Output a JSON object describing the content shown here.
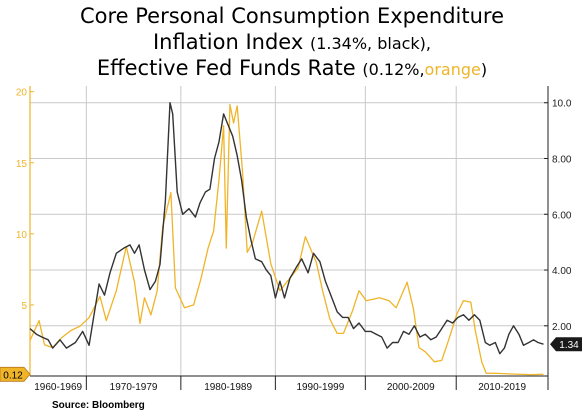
{
  "title": {
    "line1": "Core Personal Consumption Expenditure",
    "line2_main": "Inflation Index",
    "line2_paren": "(1.34%, black),",
    "line3_main": "Effective Fed Funds Rate",
    "line3_paren_open": "(0.12%,",
    "line3_orange": "orange",
    "line3_paren_close": ")"
  },
  "source": "Source:  Bloomberg",
  "colors": {
    "pce": "#333333",
    "fed": "#f0b429",
    "grid": "#c9c9c9"
  },
  "chart_data": {
    "type": "line",
    "x_labels": [
      "1960-1969",
      "1970-1979",
      "1980-1989",
      "1990-1999",
      "2000-2009",
      "2010-2019"
    ],
    "xlim": [
      1959,
      2016
    ],
    "y_left": {
      "ticks": [
        "20",
        "15",
        "10",
        "5"
      ],
      "values": [
        20,
        15,
        10,
        5
      ],
      "lim": [
        0,
        20.4
      ]
    },
    "y_right": {
      "ticks": [
        "10.0",
        "8.00",
        "6.00",
        "4.00",
        "2.00"
      ],
      "values": [
        10,
        8,
        6,
        4,
        2
      ],
      "lim": [
        0.2,
        10.6
      ]
    },
    "end_labels": {
      "fed": "0.12",
      "pce": "1.34"
    },
    "series": [
      {
        "name": "Effective Fed Funds Rate",
        "axis": "left",
        "color": "#f0b429",
        "points": [
          [
            1959.0,
            2.5
          ],
          [
            1960.0,
            3.9
          ],
          [
            1960.6,
            2.2
          ],
          [
            1961.5,
            2.0
          ],
          [
            1962.5,
            2.7
          ],
          [
            1963.5,
            3.2
          ],
          [
            1964.5,
            3.5
          ],
          [
            1965.5,
            4.1
          ],
          [
            1966.7,
            5.6
          ],
          [
            1967.4,
            3.9
          ],
          [
            1968.5,
            6.0
          ],
          [
            1969.6,
            9.1
          ],
          [
            1970.5,
            6.6
          ],
          [
            1971.1,
            3.7
          ],
          [
            1971.6,
            5.5
          ],
          [
            1972.3,
            4.3
          ],
          [
            1973.0,
            6.0
          ],
          [
            1973.6,
            10.5
          ],
          [
            1974.5,
            12.9
          ],
          [
            1975.0,
            6.2
          ],
          [
            1976.0,
            4.8
          ],
          [
            1977.0,
            5.0
          ],
          [
            1977.8,
            6.8
          ],
          [
            1978.6,
            9.0
          ],
          [
            1979.2,
            10.2
          ],
          [
            1979.8,
            13.8
          ],
          [
            1980.3,
            17.6
          ],
          [
            1980.6,
            9.0
          ],
          [
            1981.0,
            19.1
          ],
          [
            1981.4,
            17.8
          ],
          [
            1981.8,
            19.0
          ],
          [
            1982.4,
            14.2
          ],
          [
            1982.9,
            8.7
          ],
          [
            1983.5,
            9.4
          ],
          [
            1984.5,
            11.6
          ],
          [
            1985.5,
            7.9
          ],
          [
            1986.5,
            6.0
          ],
          [
            1987.5,
            6.8
          ],
          [
            1988.5,
            7.6
          ],
          [
            1989.3,
            9.8
          ],
          [
            1990.5,
            8.0
          ],
          [
            1991.2,
            6.0
          ],
          [
            1992.0,
            4.0
          ],
          [
            1992.8,
            3.0
          ],
          [
            1993.5,
            3.0
          ],
          [
            1994.5,
            4.6
          ],
          [
            1995.2,
            6.0
          ],
          [
            1996.0,
            5.3
          ],
          [
            1997.5,
            5.5
          ],
          [
            1998.5,
            5.3
          ],
          [
            1999.3,
            4.8
          ],
          [
            2000.5,
            6.6
          ],
          [
            2001.2,
            4.7
          ],
          [
            2001.8,
            2.0
          ],
          [
            2002.5,
            1.7
          ],
          [
            2003.5,
            1.0
          ],
          [
            2004.3,
            1.1
          ],
          [
            2005.0,
            2.4
          ],
          [
            2006.0,
            4.4
          ],
          [
            2006.7,
            5.3
          ],
          [
            2007.5,
            5.2
          ],
          [
            2008.0,
            3.2
          ],
          [
            2008.7,
            1.0
          ],
          [
            2009.2,
            0.2
          ],
          [
            2010.5,
            0.18
          ],
          [
            2012.0,
            0.14
          ],
          [
            2014.0,
            0.1
          ],
          [
            2015.5,
            0.12
          ]
        ]
      },
      {
        "name": "Core PCE Inflation Index",
        "axis": "right",
        "color": "#333333",
        "points": [
          [
            1959.0,
            1.9
          ],
          [
            1959.7,
            1.7
          ],
          [
            1960.3,
            1.6
          ],
          [
            1961.0,
            1.5
          ],
          [
            1961.5,
            1.2
          ],
          [
            1962.3,
            1.5
          ],
          [
            1963.0,
            1.2
          ],
          [
            1964.0,
            1.4
          ],
          [
            1964.8,
            1.8
          ],
          [
            1965.5,
            1.3
          ],
          [
            1966.0,
            2.3
          ],
          [
            1966.6,
            3.5
          ],
          [
            1967.2,
            3.1
          ],
          [
            1967.8,
            3.9
          ],
          [
            1968.5,
            4.6
          ],
          [
            1969.4,
            4.8
          ],
          [
            1970.0,
            4.9
          ],
          [
            1970.5,
            4.6
          ],
          [
            1971.0,
            4.9
          ],
          [
            1971.6,
            4.0
          ],
          [
            1972.2,
            3.3
          ],
          [
            1972.8,
            3.6
          ],
          [
            1973.3,
            4.2
          ],
          [
            1973.9,
            6.5
          ],
          [
            1974.4,
            10.0
          ],
          [
            1974.7,
            9.6
          ],
          [
            1975.2,
            6.8
          ],
          [
            1975.8,
            6.0
          ],
          [
            1976.5,
            6.2
          ],
          [
            1977.2,
            5.9
          ],
          [
            1977.7,
            6.4
          ],
          [
            1978.3,
            6.8
          ],
          [
            1978.8,
            6.9
          ],
          [
            1979.3,
            8.0
          ],
          [
            1979.8,
            8.6
          ],
          [
            1980.3,
            9.6
          ],
          [
            1980.8,
            9.2
          ],
          [
            1981.3,
            8.8
          ],
          [
            1981.8,
            8.1
          ],
          [
            1982.3,
            7.2
          ],
          [
            1982.8,
            5.9
          ],
          [
            1983.3,
            5.1
          ],
          [
            1983.8,
            4.4
          ],
          [
            1984.5,
            4.3
          ],
          [
            1985.0,
            4.0
          ],
          [
            1985.5,
            3.8
          ],
          [
            1986.0,
            3.0
          ],
          [
            1986.5,
            3.6
          ],
          [
            1987.0,
            3.0
          ],
          [
            1987.6,
            3.7
          ],
          [
            1988.3,
            4.1
          ],
          [
            1988.9,
            4.4
          ],
          [
            1989.6,
            3.9
          ],
          [
            1990.2,
            4.6
          ],
          [
            1990.9,
            4.3
          ],
          [
            1991.5,
            3.6
          ],
          [
            1992.1,
            3.1
          ],
          [
            1992.8,
            2.5
          ],
          [
            1993.4,
            2.3
          ],
          [
            1994.0,
            2.3
          ],
          [
            1994.6,
            1.9
          ],
          [
            1995.2,
            2.1
          ],
          [
            1995.9,
            1.8
          ],
          [
            1996.5,
            1.8
          ],
          [
            1997.1,
            1.7
          ],
          [
            1997.7,
            1.6
          ],
          [
            1998.3,
            1.2
          ],
          [
            1998.9,
            1.4
          ],
          [
            1999.5,
            1.4
          ],
          [
            2000.1,
            1.8
          ],
          [
            2000.7,
            1.7
          ],
          [
            2001.3,
            2.0
          ],
          [
            2001.9,
            1.6
          ],
          [
            2002.5,
            1.7
          ],
          [
            2003.1,
            1.5
          ],
          [
            2003.7,
            1.6
          ],
          [
            2004.3,
            1.9
          ],
          [
            2004.9,
            2.2
          ],
          [
            2005.5,
            2.1
          ],
          [
            2006.1,
            2.3
          ],
          [
            2006.7,
            2.4
          ],
          [
            2007.3,
            2.2
          ],
          [
            2007.9,
            2.4
          ],
          [
            2008.5,
            2.2
          ],
          [
            2009.1,
            1.4
          ],
          [
            2009.6,
            1.3
          ],
          [
            2010.2,
            1.4
          ],
          [
            2010.7,
            1.0
          ],
          [
            2011.2,
            1.2
          ],
          [
            2011.7,
            1.7
          ],
          [
            2012.2,
            2.0
          ],
          [
            2012.8,
            1.7
          ],
          [
            2013.3,
            1.3
          ],
          [
            2013.9,
            1.4
          ],
          [
            2014.4,
            1.5
          ],
          [
            2014.9,
            1.4
          ],
          [
            2015.5,
            1.34
          ]
        ]
      }
    ]
  }
}
